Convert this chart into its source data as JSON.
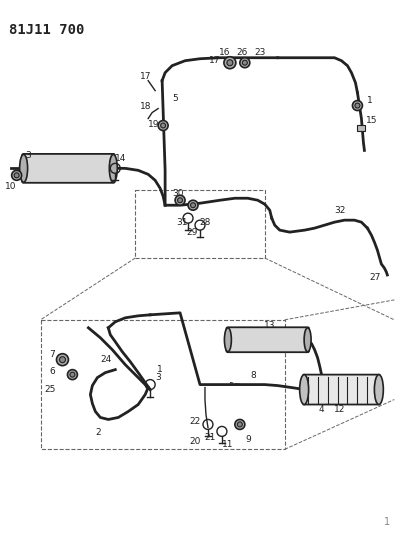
{
  "title": "81J11 700",
  "page_num": "1",
  "bg_color": "#ffffff",
  "line_color": "#222222",
  "fig_width": 3.96,
  "fig_height": 5.33,
  "dpi": 100,
  "title_fontsize": 10,
  "label_fontsize": 6.5
}
